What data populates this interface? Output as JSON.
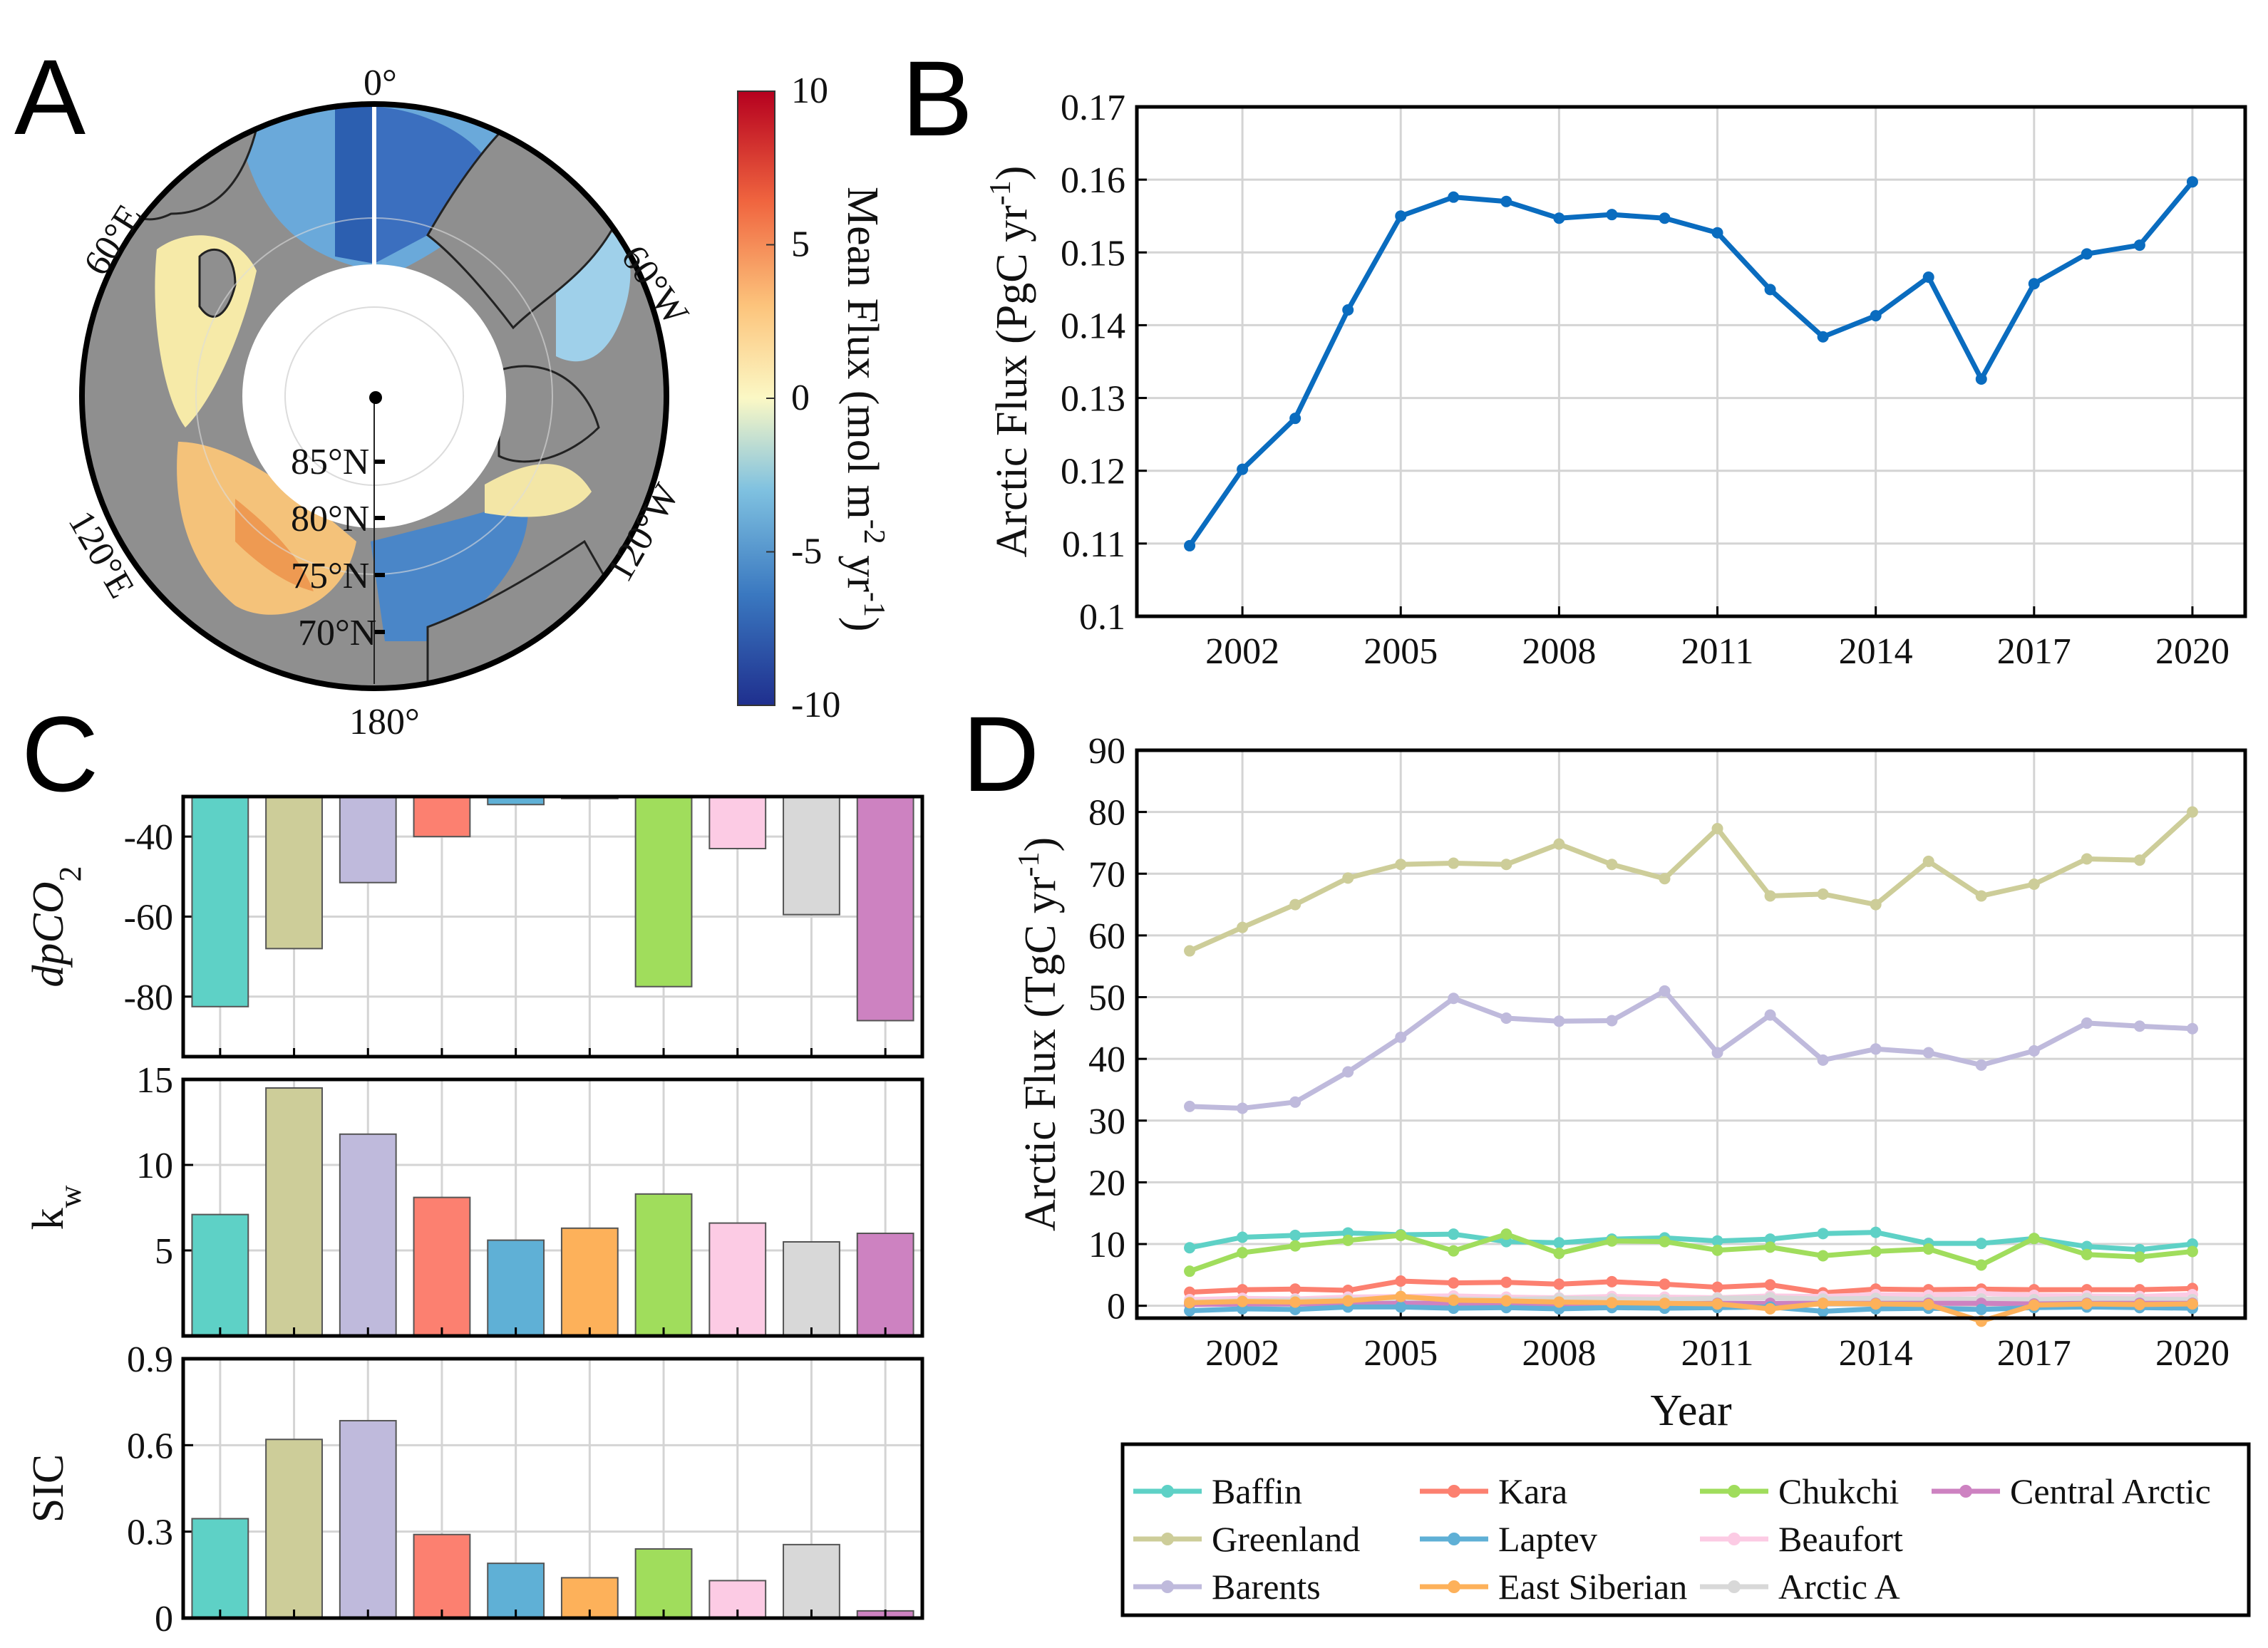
{
  "panels": {
    "A": "A",
    "B": "B",
    "C": "C",
    "D": "D"
  },
  "map": {
    "longitude_labels": [
      "0°",
      "60°W",
      "120°W",
      "180°",
      "120°E",
      "60°E"
    ],
    "latitude_labels": [
      "85°N",
      "80°N",
      "75°N",
      "70°N"
    ],
    "colorbar": {
      "label": "Mean Flux (mol m",
      "label_sup1": "-2",
      "label_mid": " yr",
      "label_sup2": "-1",
      "label_end": ")",
      "ticks": [
        "10",
        "5",
        "0",
        "-5",
        "-10"
      ],
      "range": [
        -10,
        10
      ]
    },
    "colors": {
      "land": "#8f8f8f",
      "ocean_blue": "#5b9bd0",
      "deep_blue": "#2a4fa3",
      "yellow": "#f6e7a0",
      "orange": "#f2a55b",
      "hole": "#ffffff"
    }
  },
  "chart_data": [
    {
      "panel": "B",
      "type": "line",
      "ylabel": "Arctic Flux (PgC yr",
      "ylabel_sup": "-1",
      "ylabel_end": ")",
      "xlim": [
        2000,
        2021
      ],
      "ylim": [
        0.1,
        0.17
      ],
      "xticks": [
        2002,
        2005,
        2008,
        2011,
        2014,
        2017,
        2020
      ],
      "yticks": [
        "0.1",
        "0.11",
        "0.12",
        "0.13",
        "0.14",
        "0.15",
        "0.16",
        "0.17"
      ],
      "grid": true,
      "series": [
        {
          "name": "Arctic",
          "color": "#0a6cbf",
          "x": [
            2001,
            2002,
            2003,
            2004,
            2005,
            2006,
            2007,
            2008,
            2009,
            2010,
            2011,
            2012,
            2013,
            2014,
            2015,
            2016,
            2017,
            2018,
            2019,
            2020
          ],
          "values": [
            0.1097,
            0.1202,
            0.1272,
            0.1421,
            0.155,
            0.1576,
            0.157,
            0.1547,
            0.1552,
            0.1547,
            0.1527,
            0.1449,
            0.1384,
            0.1413,
            0.1466,
            0.1326,
            0.1457,
            0.1498,
            0.151,
            0.1597
          ]
        }
      ]
    },
    {
      "panel": "C",
      "type": "bar",
      "categories": [
        "Baffin",
        "Greenland",
        "Barents",
        "Kara",
        "Laptev",
        "East Siberian",
        "Chukchi",
        "Beaufort",
        "Arctic A",
        "Central Arctic"
      ],
      "colors": [
        "#5ed1c6",
        "#cdcd99",
        "#bfbadc",
        "#fc8070",
        "#5fb0d6",
        "#fdb15a",
        "#a0dd5c",
        "#fccbe4",
        "#d8d8d8",
        "#cd82c1"
      ],
      "subplots": [
        {
          "id": "dpco2",
          "ylabel": "dpCO",
          "ylabel_sub": "2",
          "ylim": [
            -95,
            -30
          ],
          "yticks": [
            "-40",
            "-60",
            "-80"
          ],
          "values": [
            -82.5,
            -68,
            -51.5,
            -40,
            -32,
            -30.5,
            -77.5,
            -43,
            -59.5,
            -86
          ]
        },
        {
          "id": "kw",
          "ylabel": "k",
          "ylabel_sub": "w",
          "ylim": [
            0,
            15
          ],
          "yticks": [
            "5",
            "10",
            "15"
          ],
          "values": [
            7.1,
            14.5,
            11.8,
            8.1,
            5.6,
            6.3,
            8.3,
            6.6,
            5.5,
            6.0
          ]
        },
        {
          "id": "sic",
          "ylabel": "SIC",
          "ylim": [
            0,
            0.9
          ],
          "yticks": [
            "0",
            "0.3",
            "0.6",
            "0.9"
          ],
          "values": [
            0.345,
            0.62,
            0.685,
            0.29,
            0.19,
            0.14,
            0.24,
            0.13,
            0.255,
            0.025
          ]
        }
      ]
    },
    {
      "panel": "D",
      "type": "line",
      "xlabel": "Year",
      "ylabel": "Arctic Flux (TgC yr",
      "ylabel_sup": "-1",
      "ylabel_end": ")",
      "xlim": [
        2000,
        2021
      ],
      "ylim": [
        -2,
        90
      ],
      "xticks": [
        2002,
        2005,
        2008,
        2011,
        2014,
        2017,
        2020
      ],
      "yticks": [
        "0",
        "10",
        "20",
        "30",
        "40",
        "50",
        "60",
        "70",
        "80",
        "90"
      ],
      "grid": true,
      "x": [
        2001,
        2002,
        2003,
        2004,
        2005,
        2006,
        2007,
        2008,
        2009,
        2010,
        2011,
        2012,
        2013,
        2014,
        2015,
        2016,
        2017,
        2018,
        2019,
        2020
      ],
      "series": [
        {
          "name": "Greenland",
          "color": "#cdcd99",
          "values": [
            57.5,
            61.3,
            65.0,
            69.3,
            71.5,
            71.7,
            71.5,
            74.8,
            71.5,
            69.2,
            77.3,
            66.4,
            66.7,
            65.0,
            72.0,
            66.4,
            68.3,
            72.4,
            72.2,
            80.0
          ]
        },
        {
          "name": "Barents",
          "color": "#bfbadc",
          "values": [
            32.3,
            32.0,
            33.0,
            37.9,
            43.5,
            49.8,
            46.6,
            46.1,
            46.2,
            51.0,
            41.0,
            47.1,
            39.8,
            41.6,
            41.0,
            39.0,
            41.3,
            45.8,
            45.3,
            44.9
          ]
        },
        {
          "name": "Baffin",
          "color": "#5ed1c6",
          "values": [
            9.4,
            11.1,
            11.4,
            11.8,
            11.5,
            11.6,
            10.4,
            10.2,
            10.8,
            11.0,
            10.5,
            10.8,
            11.7,
            11.9,
            10.1,
            10.1,
            10.9,
            9.6,
            9.1,
            10.0
          ]
        },
        {
          "name": "Chukchi",
          "color": "#a0dd5c",
          "values": [
            5.6,
            8.6,
            9.7,
            10.6,
            11.4,
            8.9,
            11.6,
            8.5,
            10.5,
            10.4,
            9.0,
            9.5,
            8.1,
            8.8,
            9.2,
            6.6,
            10.9,
            8.3,
            7.9,
            8.8
          ]
        },
        {
          "name": "Kara",
          "color": "#fc8070",
          "values": [
            2.2,
            2.6,
            2.7,
            2.5,
            4.0,
            3.7,
            3.8,
            3.5,
            3.9,
            3.5,
            3.0,
            3.4,
            2.1,
            2.7,
            2.6,
            2.7,
            2.6,
            2.6,
            2.6,
            2.8
          ]
        },
        {
          "name": "Beaufort",
          "color": "#fccbe4",
          "values": [
            1.0,
            1.2,
            1.1,
            1.4,
            1.5,
            1.6,
            1.4,
            1.3,
            1.5,
            1.4,
            1.3,
            1.6,
            1.5,
            1.8,
            1.7,
            2.0,
            1.7,
            1.6,
            1.5,
            1.8
          ]
        },
        {
          "name": "Arctic A",
          "color": "#d8d8d8",
          "values": [
            0.6,
            0.8,
            0.9,
            1.0,
            1.2,
            1.1,
            1.0,
            1.2,
            1.1,
            1.0,
            1.2,
            1.3,
            1.1,
            1.2,
            1.0,
            1.1,
            1.0,
            1.2,
            1.1,
            1.0
          ]
        },
        {
          "name": "Central Arctic",
          "color": "#cd82c1",
          "values": [
            0.2,
            0.3,
            0.3,
            0.3,
            0.4,
            0.4,
            0.4,
            0.3,
            0.4,
            0.3,
            0.4,
            0.4,
            0.4,
            0.4,
            0.4,
            0.4,
            0.3,
            0.4,
            0.4,
            0.4
          ]
        },
        {
          "name": "Laptev",
          "color": "#5fb0d6",
          "values": [
            -0.8,
            -0.5,
            -0.6,
            -0.2,
            -0.2,
            -0.4,
            -0.3,
            -0.5,
            -0.3,
            -0.4,
            -0.3,
            -0.2,
            -0.9,
            -0.5,
            -0.4,
            -0.6,
            -0.3,
            -0.2,
            -0.3,
            -0.4
          ]
        },
        {
          "name": "East Siberian",
          "color": "#fdb15a",
          "values": [
            0.5,
            0.7,
            0.6,
            0.8,
            1.5,
            0.9,
            0.8,
            0.6,
            0.5,
            0.4,
            0.3,
            -0.5,
            0.4,
            0.3,
            0.2,
            -2.5,
            0.1,
            0.3,
            0.2,
            0.3
          ]
        }
      ],
      "legend": [
        "Baffin",
        "Greenland",
        "Barents",
        "Kara",
        "Laptev",
        "East Siberian",
        "Chukchi",
        "Beaufort",
        "Arctic A",
        "Central Arctic"
      ]
    }
  ]
}
